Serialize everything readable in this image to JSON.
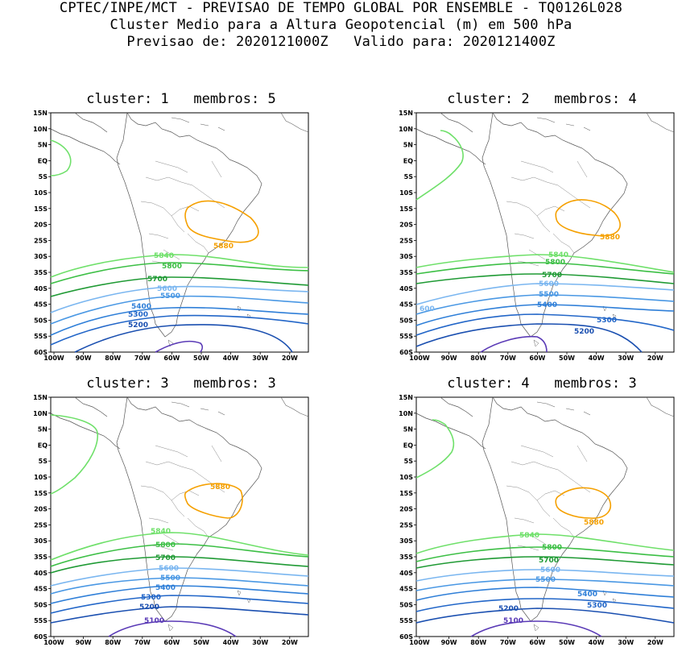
{
  "header": {
    "line1": "CPTEC/INPE/MCT - PREVISAO DE TEMPO GLOBAL POR ENSEMBLE - TQ0126L028",
    "line2": "Cluster Medio para a Altura Geopotencial (m) em 500 hPa",
    "line3": "Previsao de: 2020121000Z   Valido para: 2020121400Z"
  },
  "lat_labels": [
    "15N",
    "10N",
    "5N",
    "EQ",
    "5S",
    "10S",
    "15S",
    "20S",
    "25S",
    "30S",
    "35S",
    "40S",
    "45S",
    "50S",
    "55S",
    "60S"
  ],
  "lon_labels": [
    "100W",
    "90W",
    "80W",
    "70W",
    "60W",
    "50W",
    "40W",
    "30W",
    "20W"
  ],
  "colors": {
    "c5100": "#5a3ab6",
    "c5200": "#1a4fb0",
    "c5300": "#2266c8",
    "c5400": "#2f7fd8",
    "c5500": "#4a98e4",
    "c5600": "#7ab6f0",
    "c5700": "#1f9a34",
    "c5800": "#3cbf45",
    "c5840": "#6fe06a",
    "c5880": "#f5a000"
  },
  "panels": [
    {
      "title": "cluster: 1   membros: 5",
      "labels": {
        "l5880": "5880",
        "l5840": "5840",
        "l5800": "5800",
        "l5700": "5700",
        "l5600": "5600",
        "l5500": "5500",
        "l5400": "5400",
        "l5300": "5300",
        "l5200": "5200"
      }
    },
    {
      "title": "cluster: 2   membros: 4",
      "labels": {
        "l5880": "5880",
        "l5840": "5840",
        "l5800": "5800",
        "l5700": "5700",
        "l5600": "5600",
        "l5600b": "600",
        "l5500": "5500",
        "l5400": "5400",
        "l5300": "5300",
        "l5200": "5200"
      }
    },
    {
      "title": "cluster: 3   membros: 3",
      "labels": {
        "l5880": "5880",
        "l5840": "5840",
        "l5800": "5800",
        "l5700": "5700",
        "l5600": "5600",
        "l5500": "5500",
        "l5400": "5400",
        "l5300": "5300",
        "l5200": "5200",
        "l5100": "5100"
      }
    },
    {
      "title": "cluster: 4   membros: 3",
      "labels": {
        "l5880": "5880",
        "l5840": "5840",
        "l5800": "5800",
        "l5700": "5700",
        "l5600": "5600",
        "l5500": "5500",
        "l5400": "5400",
        "l5300": "5300",
        "l5200": "5200",
        "l5100": "5100"
      }
    }
  ]
}
